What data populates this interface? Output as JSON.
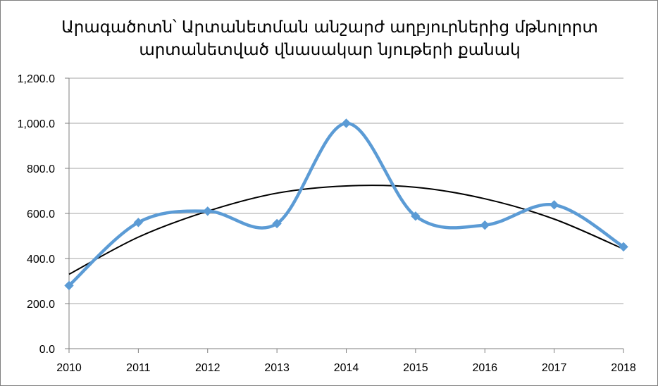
{
  "chart_data": {
    "type": "line",
    "title_lines": [
      "Արագածոտն՝ Արտանետման անշարժ աղբյուրներից մթնոլորտ",
      "արտանետված վնասակար նյութերի քանակ"
    ],
    "categories": [
      "2010",
      "2011",
      "2012",
      "2013",
      "2014",
      "2015",
      "2016",
      "2017",
      "2018"
    ],
    "series": [
      {
        "values": [
          280,
          560,
          610,
          555,
          1000,
          588,
          548,
          638,
          452
        ],
        "color": "#5b9bd5",
        "smooth": true,
        "marker": "diamond"
      }
    ],
    "trendline": {
      "type": "polynomial-2",
      "color": "#000000",
      "values": [
        330,
        495,
        610,
        690,
        722,
        716,
        665,
        575,
        442
      ]
    },
    "yticks": [
      "0.0",
      "200.0",
      "400.0",
      "600.0",
      "800.0",
      "1,000.0",
      "1,200.0"
    ],
    "ylim": [
      0,
      1200
    ],
    "grid": true,
    "legend": false
  }
}
